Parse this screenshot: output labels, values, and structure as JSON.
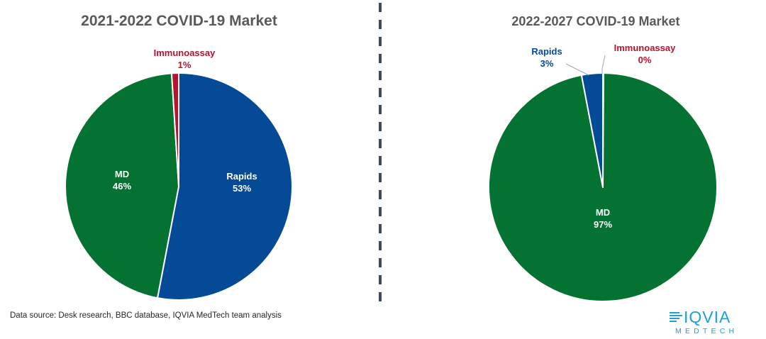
{
  "chart_data": [
    {
      "type": "pie",
      "title": "2021-2022 COVID-19 Market",
      "slices": [
        {
          "label": "Rapids",
          "value": 53,
          "display": "53%",
          "color": "#044a97"
        },
        {
          "label": "MD",
          "value": 46,
          "display": "46%",
          "color": "#047230"
        },
        {
          "label": "Immunoassay",
          "value": 1,
          "display": "1%",
          "color": "#b4142d"
        }
      ]
    },
    {
      "type": "pie",
      "title": "2022-2027 COVID-19 Market",
      "slices": [
        {
          "label": "MD",
          "value": 97,
          "display": "97%",
          "color": "#047230"
        },
        {
          "label": "Rapids",
          "value": 3,
          "display": "3%",
          "color": "#044a97"
        },
        {
          "label": "Immunoassay",
          "value": 0,
          "display": "0%",
          "color": "#b4142d"
        }
      ]
    }
  ],
  "footer": {
    "source": "Data source: Desk research, BBC database, IQVIA MedTech team analysis"
  },
  "logo": {
    "word": "IQVIA",
    "sub": "MEDTECH"
  },
  "colors": {
    "label_inside": "#ffffff",
    "title": "#595959",
    "divider": "#404a5a",
    "logo": "#1ba0d7"
  }
}
